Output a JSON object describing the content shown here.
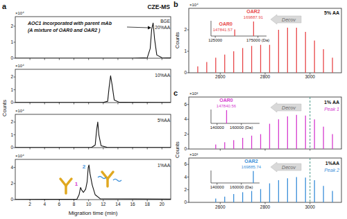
{
  "chart_data": [
    {
      "type": "line",
      "panel": "a",
      "title": "CZE-MS",
      "ylabel": "Counts",
      "y_multiplier": "×10⁴",
      "x": [
        0,
        16,
        18.0,
        18.4,
        18.6,
        18.8,
        19.0,
        19.3,
        20,
        21.2
      ],
      "series": [
        {
          "color": "#111111",
          "values": [
            0,
            0,
            0.03,
            0.6,
            1.8,
            2.2,
            1.2,
            0.2,
            0.03,
            0.02
          ]
        }
      ],
      "xlim": [
        0,
        21.2
      ],
      "xticks": [
        2,
        4,
        6,
        8,
        10,
        12,
        14,
        16,
        18,
        20
      ],
      "ylim": [
        0,
        2.6
      ],
      "yticks": [
        0,
        1,
        2
      ],
      "tick_labels": "y",
      "annotations": [
        {
          "text": "AOC1 incorporated with parent mAb",
          "color": "#111111"
        },
        {
          "text": "(A mixture of OAR0 and OAR2 )",
          "color": "#111111"
        },
        {
          "text": "BGE",
          "color": "#111111"
        },
        {
          "text": "20%AA",
          "color": "#111111"
        }
      ]
    },
    {
      "type": "line",
      "y_multiplier": "×10⁴",
      "x": [
        0,
        12.0,
        12.6,
        12.8,
        13.0,
        13.2,
        13.5,
        14.2,
        21.2
      ],
      "series": [
        {
          "color": "#111111",
          "values": [
            0.01,
            0.01,
            0.1,
            1.2,
            2.1,
            1.4,
            0.2,
            0.02,
            0.01
          ]
        }
      ],
      "xlim": [
        0,
        21.2
      ],
      "xticks": [
        2,
        4,
        6,
        8,
        10,
        12,
        14,
        16,
        18,
        20
      ],
      "ylim": [
        0,
        2.6
      ],
      "yticks": [
        0,
        1,
        2
      ],
      "tick_labels": "y",
      "annotations": [
        {
          "text": "10%AA",
          "color": "#111111"
        }
      ]
    },
    {
      "type": "line",
      "y_multiplier": "×10⁴",
      "x": [
        0,
        10.4,
        10.9,
        11.1,
        11.25,
        11.4,
        11.7,
        12.5,
        21.2
      ],
      "series": [
        {
          "color": "#111111",
          "values": [
            0.01,
            0.01,
            0.2,
            1.4,
            2.0,
            1.0,
            0.15,
            0.02,
            0.01
          ]
        }
      ],
      "xlim": [
        0,
        21.2
      ],
      "xticks": [
        2,
        4,
        6,
        8,
        10,
        12,
        14,
        16,
        18,
        20
      ],
      "ylim": [
        0,
        2.6
      ],
      "yticks": [
        0,
        1,
        2
      ],
      "tick_labels": "y",
      "annotations": [
        {
          "text": "5%AA",
          "color": "#111111"
        }
      ]
    },
    {
      "type": "line",
      "y_multiplier": "×10⁴",
      "xlabel": "Migration time (min)",
      "x": [
        0,
        8.4,
        8.7,
        8.9,
        9.05,
        9.3,
        9.6,
        9.8,
        9.95,
        10.05,
        10.2,
        10.5,
        10.9,
        11.6,
        21.2
      ],
      "series": [
        {
          "color": "#111111",
          "values": [
            0.02,
            0.05,
            0.6,
            1.5,
            1.2,
            0.9,
            1.3,
            2.2,
            4.0,
            4.3,
            3.2,
            1.8,
            0.6,
            0.1,
            0.05
          ]
        }
      ],
      "xlim": [
        0,
        21.2
      ],
      "xticks": [
        2,
        4,
        6,
        8,
        10,
        12,
        14,
        16,
        18,
        20
      ],
      "ylim": [
        0,
        5
      ],
      "yticks": [
        0,
        2,
        4
      ],
      "annotations": [
        {
          "text": "1",
          "color": "#d63ccf"
        },
        {
          "text": "2",
          "color": "#3b8fd9"
        },
        {
          "text": "1%AA",
          "color": "#111111"
        }
      ]
    },
    {
      "type": "spectrum",
      "panel": "b",
      "ylabel": "Counts",
      "y_multiplier": "×10⁴",
      "x": [
        2500,
        2540,
        2580,
        2620,
        2660,
        2700,
        2740,
        2780,
        2820,
        2860,
        2900,
        2940,
        2980,
        3020,
        3060,
        3100
      ],
      "series": [
        {
          "color": "#e8474a",
          "values": [
            0.3,
            0.5,
            0.7,
            0.85,
            1.0,
            1.15,
            1.25,
            1.3,
            1.3,
            2.0,
            2.1,
            2.1,
            1.9,
            1.5,
            1.1,
            0.7
          ]
        }
      ],
      "xlim": [
        2460,
        3140
      ],
      "xticks": [
        2600,
        2800,
        3000
      ],
      "ylim": [
        0,
        3
      ],
      "yticks": [
        0,
        1,
        2
      ],
      "annotations": [
        {
          "text": "Decov",
          "color": "#666666"
        },
        {
          "text": "5% AA",
          "color": "#111111"
        }
      ]
    },
    {
      "type": "spectrum",
      "x": [
        147841.57,
        169887.91
      ],
      "series": [
        {
          "color": "#e8474a",
          "values": [
            0.45,
            1.0
          ]
        }
      ],
      "xlim": [
        120000,
        185000
      ],
      "xticks": [
        125000,
        {
          "value": 175000,
          "label": "175000 (Da)"
        }
      ],
      "ylim": [
        0,
        1.05
      ],
      "tick_labels": "x",
      "annotations": [
        {
          "text": "OAR0",
          "color": "#e8474a"
        },
        {
          "text": "147841.57",
          "color": "#e8474a"
        },
        {
          "text": "OAR2",
          "color": "#e8474a"
        },
        {
          "text": "169887.91",
          "color": "#e8474a"
        }
      ]
    },
    {
      "type": "spectrum",
      "panel": "c",
      "ylabel": "Counts",
      "y_multiplier": "×10³",
      "reference_line": 3000,
      "x": [
        2580,
        2620,
        2660,
        2700,
        2740,
        2780,
        2820,
        2860,
        2900,
        2940,
        2980,
        3020,
        3060,
        3100
      ],
      "series": [
        {
          "color": "#d63ccf",
          "values": [
            0.6,
            0.9,
            1.2,
            1.5,
            1.8,
            2.0,
            3.4,
            4.0,
            4.4,
            4.6,
            4.5,
            4.0,
            3.0,
            2.0
          ]
        }
      ],
      "xlim": [
        2460,
        3140
      ],
      "xticks": [
        2600,
        2800,
        3000
      ],
      "ylim": [
        0,
        7
      ],
      "yticks": [
        0,
        2,
        4,
        6
      ],
      "tick_labels": "y",
      "annotations": [
        {
          "text": "Decov",
          "color": "#666666"
        },
        {
          "text": "1% AA",
          "color": "#111111"
        },
        {
          "text": "Peak 1",
          "color": "#d63ccf"
        }
      ]
    },
    {
      "type": "spectrum",
      "x": [
        147840.56
      ],
      "series": [
        {
          "color": "#d63ccf",
          "values": [
            1.0
          ]
        }
      ],
      "xlim": [
        135000,
        175000
      ],
      "xticks": [
        140000,
        {
          "value": 160000,
          "label": "160000 (Da)"
        }
      ],
      "ylim": [
        0,
        1.05
      ],
      "tick_labels": "x",
      "annotations": [
        {
          "text": "OAR0",
          "color": "#d63ccf"
        },
        {
          "text": "147840.56",
          "color": "#d63ccf"
        }
      ]
    },
    {
      "type": "spectrum",
      "y_multiplier": "×10³",
      "reference_line": 3000,
      "x": [
        2580,
        2620,
        2660,
        2700,
        2740,
        2780,
        2820,
        2860,
        2900,
        2940,
        2980,
        3020,
        3060,
        3100
      ],
      "series": [
        {
          "color": "#3b8fd9",
          "values": [
            0.6,
            0.9,
            1.3,
            1.6,
            1.8,
            2.1,
            3.0,
            3.5,
            3.8,
            4.0,
            3.9,
            3.5,
            2.6,
            1.8
          ]
        }
      ],
      "xlim": [
        2460,
        3140
      ],
      "xticks": [
        2600,
        2800,
        3000
      ],
      "ylim": [
        0,
        7
      ],
      "yticks": [
        0,
        2,
        4,
        6
      ],
      "annotations": [
        {
          "text": "Decov",
          "color": "#666666"
        },
        {
          "text": "1%AA",
          "color": "#111111"
        },
        {
          "text": "Peak 2",
          "color": "#3b8fd9"
        }
      ]
    },
    {
      "type": "spectrum",
      "x": [
        169885.74
      ],
      "series": [
        {
          "color": "#3b8fd9",
          "values": [
            1.0
          ]
        }
      ],
      "xlim": [
        135000,
        175000
      ],
      "xticks": [
        140000,
        {
          "value": 160000,
          "label": "160000 (Da)"
        }
      ],
      "ylim": [
        0,
        1.05
      ],
      "tick_labels": "x",
      "annotations": [
        {
          "text": "OAR2",
          "color": "#3b8fd9"
        },
        {
          "text": "169885.74",
          "color": "#3b8fd9"
        }
      ]
    }
  ]
}
